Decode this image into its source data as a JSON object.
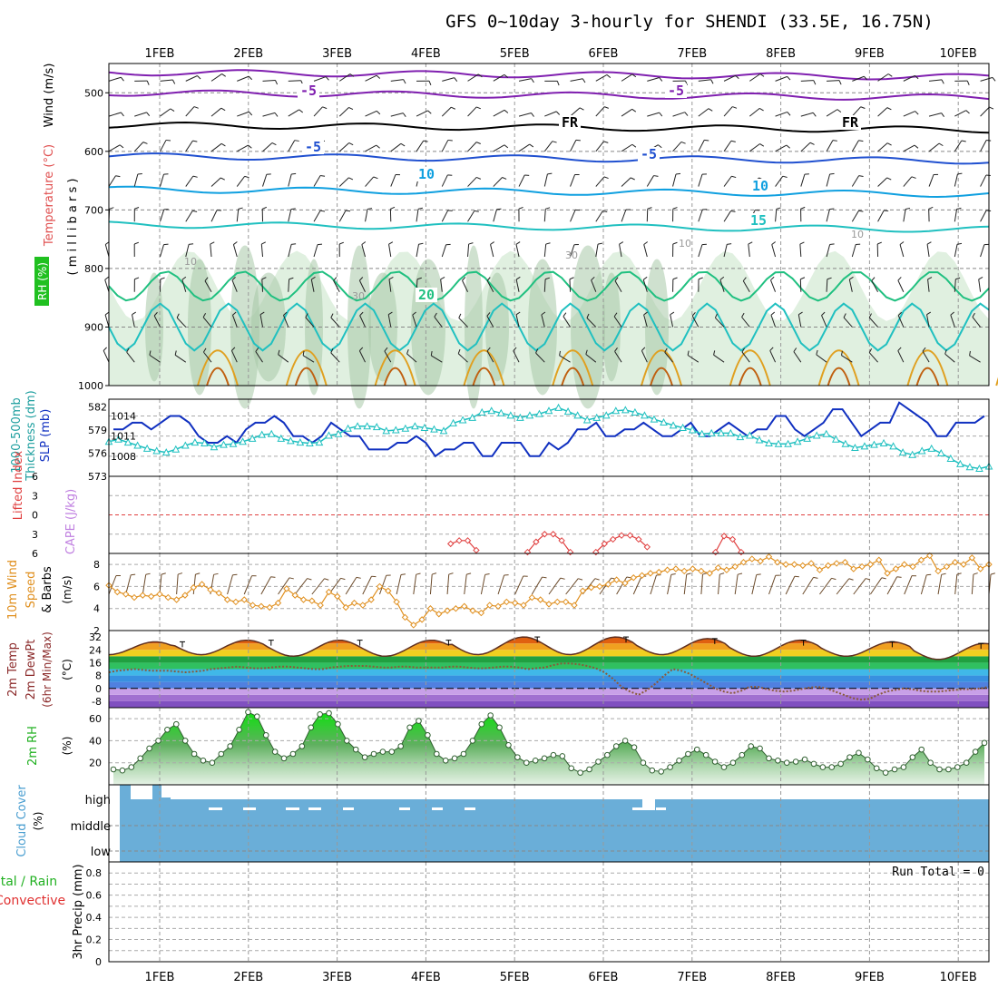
{
  "title": "GFS 0~10day 3-hourly for SHENDI (33.5E, 16.75N)",
  "date_labels": [
    "1FEB",
    "2FEB",
    "3FEB",
    "4FEB",
    "5FEB",
    "6FEB",
    "7FEB",
    "8FEB",
    "9FEB",
    "10FEB"
  ],
  "colors": {
    "purple": "#8020b0",
    "black": "#000000",
    "blue": "#2050d0",
    "cyan": "#10a0e0",
    "teal": "#20c0c0",
    "green": "#20c080",
    "orange": "#e0a020",
    "brown": "#c06010",
    "slp": "#1030c0",
    "thick": "#20c0c0",
    "li": "#e04040",
    "wind10": "#e09020",
    "rh": "#20c020",
    "cloud": "#6aaed8"
  },
  "chart_data": [
    {
      "type": "heatmap",
      "name": "upper-air",
      "ylabel_parts": [
        "Wind (m/s)",
        "Temperature (°C)",
        "RH (%)"
      ],
      "ylabel_units": "( m i l l i b a r s )",
      "y_ticks": [
        "500",
        "600",
        "700",
        "800",
        "900",
        "1000"
      ],
      "isotherm_labels": [
        "-5",
        "-5",
        "FR",
        "FR",
        "-5",
        "-5",
        "10",
        "10",
        "15",
        "20"
      ],
      "rh_labels": [
        "10",
        "30",
        "30",
        "10",
        "10"
      ]
    },
    {
      "type": "line",
      "name": "slp-thickness",
      "ylabel_left": [
        "1000-500mb",
        "Thickness (dm)"
      ],
      "ylabel_right": "SLP (mb)",
      "left_ticks": [
        "582",
        "579",
        "576",
        "573"
      ],
      "right_ticks": [
        "1014",
        "1011",
        "1008"
      ],
      "ylim_slp": [
        1005,
        1016.5
      ],
      "ylim_thick": [
        573,
        583
      ],
      "series": [
        {
          "name": "SLP",
          "values": [
            1012,
            1012,
            1013,
            1013,
            1012,
            1013,
            1014,
            1014,
            1013,
            1011,
            1010,
            1010,
            1011,
            1010,
            1012,
            1013,
            1013,
            1014,
            1013,
            1011,
            1011,
            1010,
            1011,
            1013,
            1012,
            1011,
            1011,
            1009,
            1009,
            1009,
            1010,
            1010,
            1011,
            1010,
            1008,
            1009,
            1009,
            1010,
            1010,
            1008,
            1008,
            1010,
            1010,
            1010,
            1008,
            1008,
            1010,
            1009,
            1010,
            1012,
            1012,
            1013,
            1011,
            1011,
            1012,
            1012,
            1013,
            1012,
            1011,
            1011,
            1012,
            1013,
            1011,
            1011,
            1012,
            1013,
            1012,
            1011,
            1012,
            1012,
            1014,
            1014,
            1012,
            1011,
            1012,
            1013,
            1015,
            1015,
            1013,
            1011,
            1012,
            1013,
            1013,
            1016,
            1015,
            1014,
            1013,
            1011,
            1011,
            1013,
            1013,
            1013,
            1014
          ]
        },
        {
          "name": "Thickness",
          "values": [
            577.5,
            577.8,
            577.4,
            577.0,
            576.6,
            576.3,
            576.1,
            576.5,
            577.0,
            577.4,
            577.3,
            576.8,
            577.1,
            577.2,
            577.5,
            577.9,
            578.4,
            578.5,
            577.9,
            577.6,
            577.4,
            577.3,
            577.4,
            578.3,
            578.5,
            579.2,
            579.5,
            579.5,
            579.4,
            578.9,
            579.0,
            579.2,
            579.5,
            579.3,
            579.1,
            578.9,
            579.9,
            580.3,
            580.6,
            581.3,
            581.5,
            581.2,
            580.9,
            580.6,
            580.9,
            581.1,
            581.5,
            581.9,
            581.4,
            580.9,
            580.3,
            580.6,
            580.9,
            581.5,
            581.6,
            581.3,
            580.9,
            580.4,
            580.0,
            579.6,
            579.3,
            579.0,
            578.5,
            578.6,
            578.6,
            578.6,
            578.1,
            578.3,
            577.7,
            577.3,
            577.2,
            577.2,
            577.5,
            577.9,
            578.3,
            578.5,
            577.8,
            577.2,
            576.7,
            576.9,
            577.1,
            577.3,
            576.9,
            576.1,
            575.8,
            576.3,
            576.6,
            576.0,
            575.3,
            574.6,
            574.2,
            574.0,
            574.3
          ]
        }
      ]
    },
    {
      "type": "line",
      "name": "cape-li",
      "ylabel_left": "Lifted Index",
      "ylabel_right": "CAPE (J/kg)",
      "y_ticks": [
        "-6",
        "-3",
        "0",
        "3",
        "6"
      ],
      "ylim": [
        -6,
        6
      ],
      "series": [
        {
          "name": "Lifted Index",
          "segments": [
            {
              "start": 40,
              "values": [
                4.5,
                4.0,
                4.0,
                5.5
              ]
            },
            {
              "start": 49,
              "values": [
                5.8,
                4.2,
                3.0,
                3.0,
                4.0,
                5.8
              ]
            },
            {
              "start": 57,
              "values": [
                5.8,
                4.5,
                3.8,
                3.2,
                3.2,
                3.8,
                5.0
              ]
            },
            {
              "start": 71,
              "values": [
                5.8,
                3.3,
                3.8,
                5.8
              ]
            }
          ]
        }
      ]
    },
    {
      "type": "line",
      "name": "wind10m",
      "ylabel_parts": [
        "10m Wind",
        "Speed",
        "& Barbs"
      ],
      "ylabel_units": "(m/s)",
      "y_ticks": [
        "8",
        "6",
        "4",
        "2"
      ],
      "ylim": [
        2,
        9
      ],
      "series": [
        {
          "name": "10m wind speed",
          "values": [
            6.1,
            5.5,
            5.3,
            5.0,
            5.2,
            5.1,
            5.3,
            5.0,
            4.8,
            5.2,
            5.9,
            6.2,
            5.7,
            5.4,
            4.8,
            4.6,
            4.8,
            4.3,
            4.2,
            4.1,
            4.5,
            5.8,
            5.2,
            4.8,
            4.7,
            4.3,
            5.5,
            5.1,
            4.1,
            4.5,
            4.3,
            4.8,
            6.0,
            5.6,
            4.6,
            3.2,
            2.5,
            3.0,
            4.0,
            3.5,
            3.8,
            4.0,
            4.2,
            3.8,
            3.6,
            4.3,
            4.2,
            4.6,
            4.5,
            4.3,
            5.0,
            4.8,
            4.4,
            4.6,
            4.6,
            4.3,
            5.6,
            5.9,
            6.0,
            6.2,
            6.6,
            6.3,
            6.8,
            7.0,
            7.2,
            7.3,
            7.5,
            7.6,
            7.4,
            7.6,
            7.4,
            7.2,
            7.7,
            7.5,
            7.8,
            8.2,
            8.5,
            8.3,
            8.7,
            8.2,
            8.0,
            8.0,
            7.9,
            8.1,
            7.5,
            7.9,
            8.1,
            8.2,
            7.6,
            7.8,
            8.0,
            8.4,
            7.2,
            7.6,
            8.0,
            7.8,
            8.4,
            8.8,
            7.4,
            7.8,
            8.2,
            8.0,
            8.6,
            7.6,
            8.0
          ]
        }
      ]
    },
    {
      "type": "line",
      "name": "temp2m",
      "ylabel_parts": [
        "2m Temp",
        "2m DewPt",
        "(6hr Min/Max)"
      ],
      "ylabel_units": "(°C)",
      "y_ticks": [
        "32",
        "24",
        "16",
        "8",
        "0",
        "-8"
      ],
      "ylim": [
        -12,
        36
      ],
      "temp_max": [
        29,
        30,
        30,
        30,
        32,
        32,
        31,
        30,
        29,
        28
      ],
      "temp_min": [
        21,
        21,
        20,
        20,
        21,
        21,
        21,
        20,
        20,
        18
      ],
      "dewpoint_values": [
        10,
        11,
        11.5,
        12,
        11.5,
        11,
        11,
        11,
        10.5,
        10,
        10.5,
        11,
        12,
        12.5,
        13,
        13.5,
        13,
        12.5,
        12.5,
        13,
        13.5,
        13.5,
        13,
        12.5,
        12,
        12,
        13,
        13.5,
        14,
        14,
        14,
        13.5,
        13,
        13,
        13.5,
        13.5,
        13,
        13,
        13,
        13,
        13.5,
        13.5,
        13,
        12.5,
        12.5,
        13,
        13.5,
        13.5,
        13,
        12,
        12.5,
        13,
        14.5,
        15.5,
        15.5,
        15,
        14,
        12.5,
        10,
        6,
        1,
        -2,
        -4,
        -1,
        3,
        8,
        12,
        11,
        9,
        6,
        3,
        0,
        -2,
        -3,
        -1.5,
        1,
        1,
        -0.5,
        -1.5,
        -2,
        -1.5,
        -0.5,
        0.5,
        1,
        0,
        -2,
        -4,
        -6,
        -7,
        -6.5,
        -4,
        -2,
        -1,
        0,
        -0.5,
        -1.5,
        -2,
        -2,
        -1.5,
        -1,
        -0.5,
        -0.5,
        0,
        1
      ]
    },
    {
      "type": "area",
      "name": "rh2m",
      "ylabel_parts": [
        "2m RH"
      ],
      "ylabel_units": "(%)",
      "y_ticks": [
        "60",
        "40",
        "20"
      ],
      "ylim": [
        0,
        70
      ],
      "series": [
        {
          "name": "2m RH",
          "values": [
            14,
            13,
            16,
            24,
            33,
            40,
            50,
            55,
            40,
            28,
            22,
            20,
            28,
            35,
            50,
            66,
            62,
            45,
            30,
            24,
            28,
            35,
            52,
            64,
            65,
            55,
            40,
            32,
            25,
            28,
            30,
            30,
            35,
            52,
            58,
            45,
            28,
            22,
            24,
            28,
            40,
            55,
            63,
            52,
            36,
            25,
            20,
            22,
            24,
            27,
            26,
            15,
            11,
            14,
            21,
            27,
            35,
            40,
            34,
            20,
            13,
            12,
            16,
            22,
            28,
            32,
            27,
            21,
            16,
            20,
            27,
            35,
            33,
            24,
            22,
            20,
            21,
            23,
            19,
            16,
            16,
            19,
            25,
            29,
            23,
            15,
            11,
            14,
            16,
            25,
            32,
            20,
            14,
            14,
            16,
            20,
            30,
            38
          ]
        }
      ]
    },
    {
      "type": "bar",
      "name": "cloud-cover",
      "ylabel": "Cloud Cover",
      "ylabel_units": "(%)",
      "level_labels": [
        "high",
        "middle",
        "low"
      ]
    },
    {
      "type": "bar",
      "name": "precip",
      "ylabel_left_parts": [
        "Total / Rain",
        "Convective"
      ],
      "ylabel_units": "3hr Precip (mm)",
      "y_ticks": [
        "0.8",
        "0.6",
        "0.4",
        "0.2",
        "0"
      ],
      "ylim": [
        0,
        0.9
      ],
      "annotation": "Run Total = 0",
      "values": []
    }
  ]
}
